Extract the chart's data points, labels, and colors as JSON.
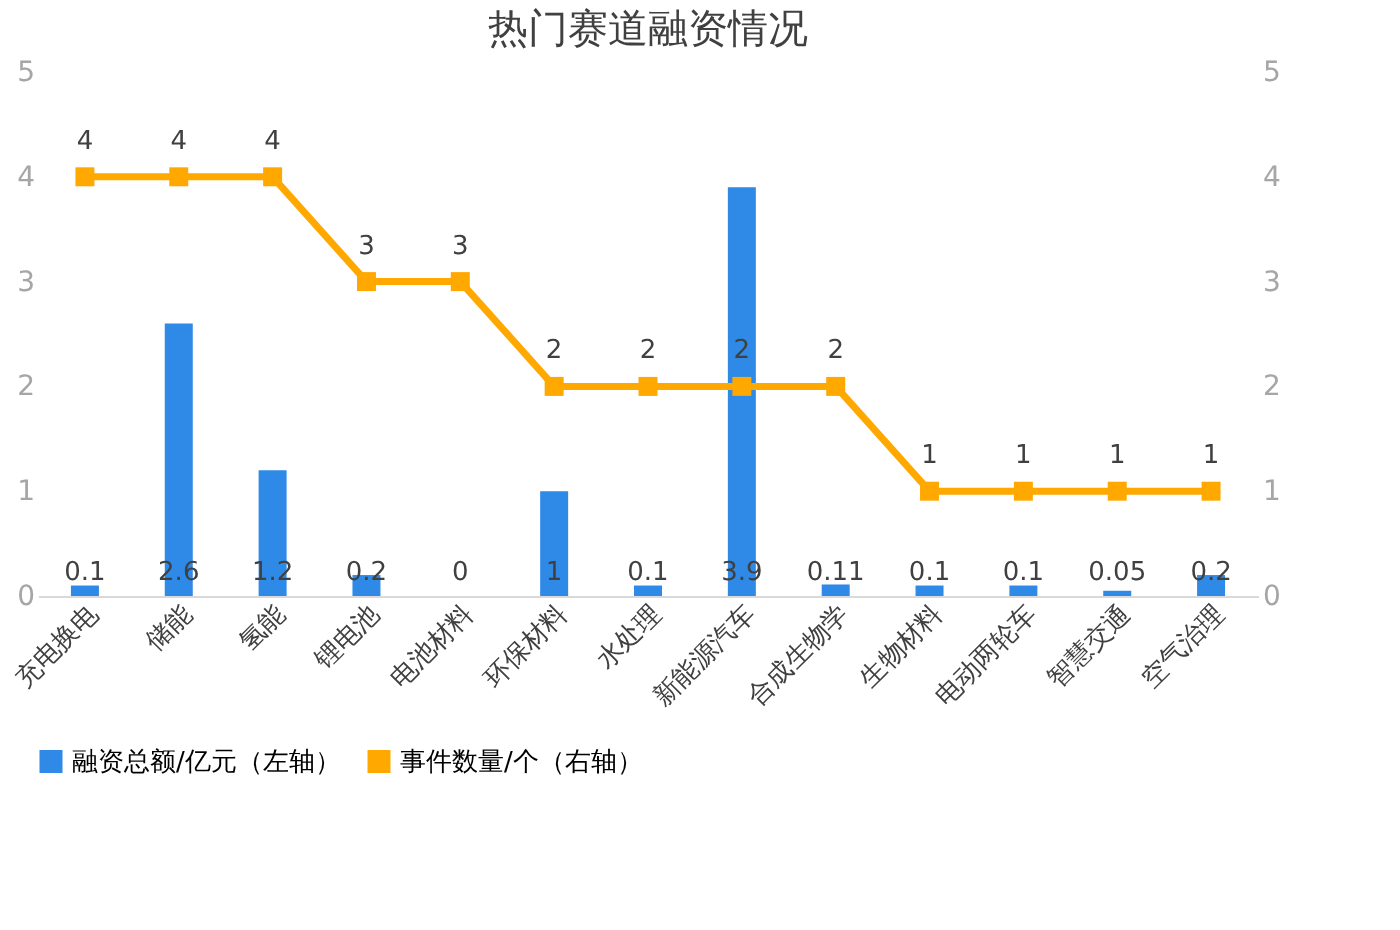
{
  "chart_data": {
    "type": "bar",
    "title": "热门赛道融资情况",
    "categories": [
      "充电换电",
      "储能",
      "氢能",
      "锂电池",
      "电池材料",
      "环保材料",
      "水处理",
      "新能源汽车",
      "合成生物学",
      "生物材料",
      "电动两轮车",
      "智慧交通",
      "空气治理"
    ],
    "series": [
      {
        "name": "融资总额/亿元（左轴）",
        "color": "#2e8ae6",
        "values": [
          0.1,
          2.6,
          1.2,
          0.2,
          0,
          1,
          0.1,
          3.9,
          0.11,
          0.1,
          0.1,
          0.05,
          0.2
        ]
      },
      {
        "name": "事件数量/个（右轴）",
        "type": "line",
        "axis": "y2",
        "color": "#ffa800",
        "marker": "square",
        "values": [
          4,
          4,
          4,
          3,
          3,
          2,
          2,
          2,
          2,
          1,
          1,
          1,
          1
        ]
      }
    ],
    "ylim": [
      0,
      5
    ],
    "yticks": [
      0,
      1,
      2,
      3,
      4,
      5
    ],
    "y2lim": [
      0,
      5
    ],
    "y2ticks": [
      0,
      1,
      2,
      3,
      4,
      5
    ],
    "data_labels": true,
    "grid": false,
    "legend": "bottom"
  }
}
